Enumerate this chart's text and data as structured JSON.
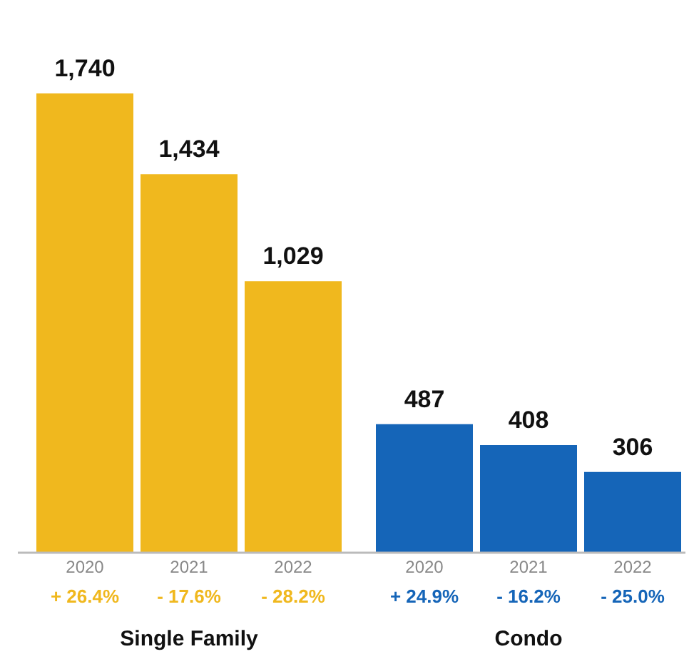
{
  "chart_data": {
    "type": "bar",
    "categories": [
      "2020",
      "2021",
      "2022",
      "2020",
      "2021",
      "2022"
    ],
    "values": [
      1740,
      1434,
      1029,
      487,
      408,
      306
    ],
    "colors": [
      "#f0b81e",
      "#f0b81e",
      "#f0b81e",
      "#1565b8",
      "#1565b8",
      "#1565b8"
    ],
    "value_labels": [
      "1,740",
      "1,434",
      "1,029",
      "487",
      "408",
      "306"
    ],
    "annotations": [
      "+ 26.4%",
      "- 17.6%",
      "- 28.2%",
      "+ 24.9%",
      "- 16.2%",
      "- 25.0%",
      "Single Family",
      "Condo"
    ],
    "grid": false
  }
}
